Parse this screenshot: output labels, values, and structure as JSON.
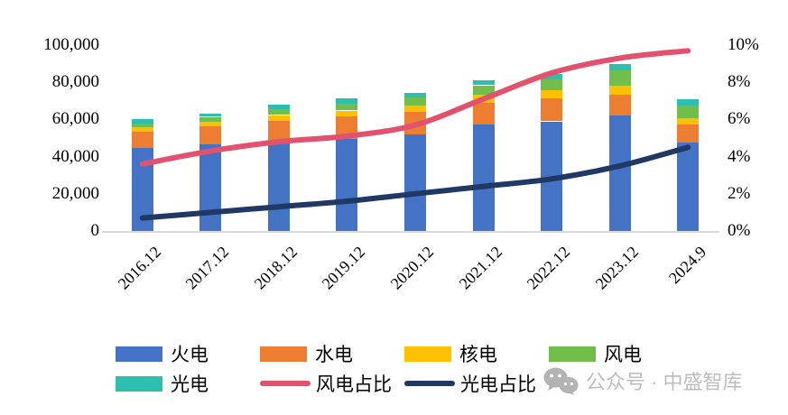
{
  "chart_data": {
    "type": "bar+line",
    "title": "",
    "subtitle": "",
    "categories": [
      "2016.12",
      "2017.12",
      "2018.12",
      "2019.12",
      "2020.12",
      "2021.12",
      "2022.12",
      "2023.12",
      "2024.9"
    ],
    "bar_mode": "stacked",
    "bar_series": [
      {
        "id": "thermal",
        "name": "火电",
        "color": "#4472C4",
        "values": [
          44500,
          46500,
          48500,
          49500,
          52000,
          57500,
          59000,
          62000,
          47500
        ]
      },
      {
        "id": "hydro",
        "name": "水电",
        "color": "#ED7D31",
        "values": [
          9000,
          10000,
          11000,
          12000,
          12000,
          11500,
          12500,
          11500,
          10000
        ]
      },
      {
        "id": "nuclear",
        "name": "核电",
        "color": "#FFC000",
        "values": [
          2200,
          2400,
          2900,
          3300,
          3600,
          4100,
          4400,
          4600,
          3200
        ]
      },
      {
        "id": "wind",
        "name": "风电",
        "color": "#71BE4B",
        "values": [
          2200,
          2500,
          3300,
          3800,
          4200,
          5300,
          5500,
          8100,
          6900
        ]
      },
      {
        "id": "solar",
        "name": "光电",
        "color": "#2CBFB0",
        "values": [
          2100,
          1600,
          2300,
          2900,
          2400,
          2600,
          3100,
          3800,
          3400
        ]
      }
    ],
    "line_series": [
      {
        "id": "wind-share",
        "name": "风电占比",
        "color": "#E2526E",
        "axis": "right",
        "values_pct": [
          3.6,
          4.3,
          4.8,
          5.1,
          5.7,
          7.1,
          8.5,
          9.3,
          9.7
        ]
      },
      {
        "id": "solar-share",
        "name": "光电占比",
        "color": "#1F3864",
        "axis": "right",
        "values_pct": [
          0.7,
          1.0,
          1.3,
          1.6,
          2.0,
          2.4,
          2.8,
          3.5,
          4.5
        ]
      }
    ],
    "left_axis": {
      "min": 0,
      "max": 100000,
      "tick_labels": [
        "0",
        "20,000",
        "40,000",
        "60,000",
        "80,000",
        "100,000"
      ]
    },
    "right_axis": {
      "min": 0,
      "max": 10,
      "tick_labels": [
        "0%",
        "2%",
        "4%",
        "6%",
        "8%",
        "10%"
      ]
    },
    "grid": "baseline-only",
    "legend_position": "bottom"
  },
  "watermark": {
    "icon": "wechat-icon",
    "text": "公众号 · 中盛智库",
    "color": "#BDBDBD"
  },
  "colors": {
    "background": "#FFFFFF",
    "baseline": "#D9D9D9",
    "axis_text": "#000000"
  }
}
